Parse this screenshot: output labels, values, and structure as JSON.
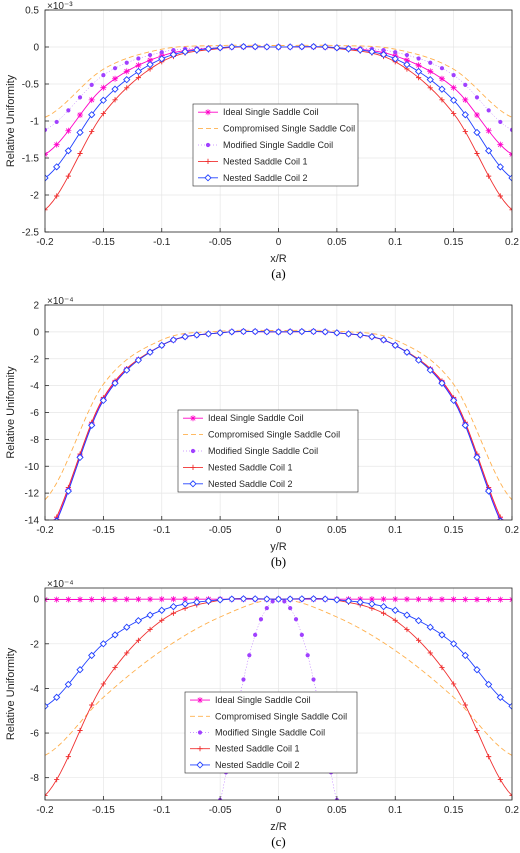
{
  "series_styles": [
    {
      "color": "#ff00c8",
      "marker": "star"
    },
    {
      "color": "#ffb04d",
      "marker": "none",
      "dash": "5,3"
    },
    {
      "color": "#a040ff",
      "marker": "dot"
    },
    {
      "color": "#f03030",
      "marker": "plus"
    },
    {
      "color": "#2040ff",
      "marker": "diamond"
    }
  ],
  "chart_data": [
    {
      "type": "line",
      "caption": "(a)",
      "xlabel": "x/R",
      "ylabel": "Relative Uniformity",
      "exponent": "×10⁻³",
      "xlim": [
        -0.2,
        0.2
      ],
      "ylim": [
        -2.5,
        0.5
      ],
      "xticks": [
        -0.2,
        -0.15,
        -0.1,
        -0.05,
        0,
        0.05,
        0.1,
        0.15,
        0.2
      ],
      "xticklabels": [
        "-0.2",
        "-0.15",
        "-0.1",
        "-0.05",
        "0",
        "0.05",
        "0.1",
        "0.15",
        "0.2"
      ],
      "yticks": [
        0.5,
        0,
        -0.5,
        -1,
        -1.5,
        -2,
        -2.5
      ],
      "yticklabels": [
        "0.5",
        "0",
        "-0.5",
        "-1",
        "-1.5",
        "-2",
        "-2.5"
      ],
      "grid": true,
      "legend_position": "center",
      "x": [
        -0.2,
        -0.15,
        -0.1,
        -0.05,
        0,
        0.05,
        0.1,
        0.15,
        0.2
      ],
      "series": [
        {
          "name": "Ideal Single Saddle Coil",
          "values": [
            -1.45,
            -0.55,
            -0.12,
            -0.01,
            0,
            -0.01,
            -0.12,
            -0.55,
            -1.45
          ]
        },
        {
          "name": "Compromised Single Saddle Coil",
          "values": [
            -0.95,
            -0.3,
            -0.03,
            0.02,
            0.02,
            0.02,
            -0.03,
            -0.3,
            -0.95
          ]
        },
        {
          "name": "Modified Single Saddle Coil",
          "values": [
            -1.12,
            -0.38,
            -0.07,
            -0.01,
            0,
            -0.01,
            -0.07,
            -0.38,
            -1.12
          ]
        },
        {
          "name": "Nested Saddle Coil 1",
          "values": [
            -2.2,
            -0.9,
            -0.2,
            -0.02,
            0,
            -0.02,
            -0.2,
            -0.9,
            -2.2
          ]
        },
        {
          "name": "Nested Saddle Coil 2",
          "values": [
            -1.77,
            -0.72,
            -0.16,
            -0.01,
            0,
            -0.01,
            -0.16,
            -0.72,
            -1.77
          ]
        }
      ]
    },
    {
      "type": "line",
      "caption": "(b)",
      "xlabel": "y/R",
      "ylabel": "Relative Uniformity",
      "exponent": "×10⁻⁴",
      "xlim": [
        -0.2,
        0.2
      ],
      "ylim": [
        -14,
        2
      ],
      "xticks": [
        -0.2,
        -0.15,
        -0.1,
        -0.05,
        0,
        0.05,
        0.1,
        0.15,
        0.2
      ],
      "xticklabels": [
        "-0.2",
        "-0.15",
        "-0.1",
        "-0.05",
        "0",
        "0.05",
        "0.1",
        "0.15",
        "0.2"
      ],
      "yticks": [
        2,
        0,
        -2,
        -4,
        -6,
        -8,
        -10,
        -12,
        -14
      ],
      "yticklabels": [
        "2",
        "0",
        "-2",
        "-4",
        "-6",
        "-8",
        "-10",
        "-12",
        "-14"
      ],
      "grid": true,
      "legend_position": "center",
      "x": [
        -0.2,
        -0.15,
        -0.1,
        -0.05,
        0,
        0.05,
        0.1,
        0.15,
        0.2
      ],
      "series": [
        {
          "name": "Ideal Single Saddle Coil",
          "values": [
            -15.5,
            -5.0,
            -1.0,
            -0.07,
            0,
            -0.07,
            -1.0,
            -5.0,
            -15.5
          ]
        },
        {
          "name": "Compromised Single Saddle Coil",
          "values": [
            -12.5,
            -3.9,
            -0.6,
            0.05,
            0.1,
            0.05,
            -0.6,
            -3.9,
            -12.5
          ]
        },
        {
          "name": "Modified Single Saddle Coil",
          "values": [
            -15.5,
            -5.0,
            -1.0,
            -0.07,
            0,
            -0.07,
            -1.0,
            -5.0,
            -15.5
          ]
        },
        {
          "name": "Nested Saddle Coil 1",
          "values": [
            -15.3,
            -4.9,
            -1.0,
            -0.07,
            0,
            -0.07,
            -1.0,
            -4.9,
            -15.3
          ]
        },
        {
          "name": "Nested Saddle Coil 2",
          "values": [
            -15.6,
            -5.1,
            -1.0,
            -0.07,
            0,
            -0.07,
            -1.0,
            -5.1,
            -15.6
          ]
        }
      ]
    },
    {
      "type": "line",
      "caption": "(c)",
      "xlabel": "z/R",
      "ylabel": "Relative Uniformity",
      "exponent": "×10⁻⁴",
      "xlim": [
        -0.2,
        0.2
      ],
      "ylim": [
        -9,
        0.5
      ],
      "xticks": [
        -0.2,
        -0.15,
        -0.1,
        -0.05,
        0,
        0.05,
        0.1,
        0.15,
        0.2
      ],
      "xticklabels": [
        "-0.2",
        "-0.15",
        "-0.1",
        "-0.05",
        "0",
        "0.05",
        "0.1",
        "0.15",
        "0.2"
      ],
      "yticks": [
        0,
        -2,
        -4,
        -6,
        -8
      ],
      "yticklabels": [
        "0",
        "-2",
        "-4",
        "-6",
        "-8"
      ],
      "grid": true,
      "legend_position": "center",
      "x": [
        -0.2,
        -0.15,
        -0.1,
        -0.05,
        0,
        0.05,
        0.1,
        0.15,
        0.2
      ],
      "series": [
        {
          "name": "Ideal Single Saddle Coil",
          "values": [
            -0.02,
            -0.01,
            0,
            0,
            0,
            0,
            0,
            -0.01,
            -0.02
          ]
        },
        {
          "name": "Compromised Single Saddle Coil",
          "values": [
            -7.0,
            -4.4,
            -2.3,
            -0.8,
            0,
            -0.8,
            -2.3,
            -4.4,
            -7.0
          ]
        },
        {
          "name": "Modified Single Saddle Coil",
          "x": [
            -0.05,
            -0.04,
            -0.03,
            -0.02,
            -0.01,
            0,
            0.01,
            0.02,
            0.03,
            0.04,
            0.05
          ],
          "values": [
            -9.0,
            -6.2,
            -3.6,
            -1.6,
            -0.4,
            0,
            -0.4,
            -1.6,
            -3.6,
            -6.2,
            -9.0
          ]
        },
        {
          "name": "Nested Saddle Coil 1",
          "values": [
            -8.8,
            -3.8,
            -0.95,
            -0.05,
            0,
            -0.05,
            -0.95,
            -3.8,
            -8.8
          ]
        },
        {
          "name": "Nested Saddle Coil 2",
          "values": [
            -4.8,
            -2.0,
            -0.5,
            -0.03,
            0,
            -0.03,
            -0.5,
            -2.0,
            -4.8
          ]
        }
      ]
    }
  ]
}
